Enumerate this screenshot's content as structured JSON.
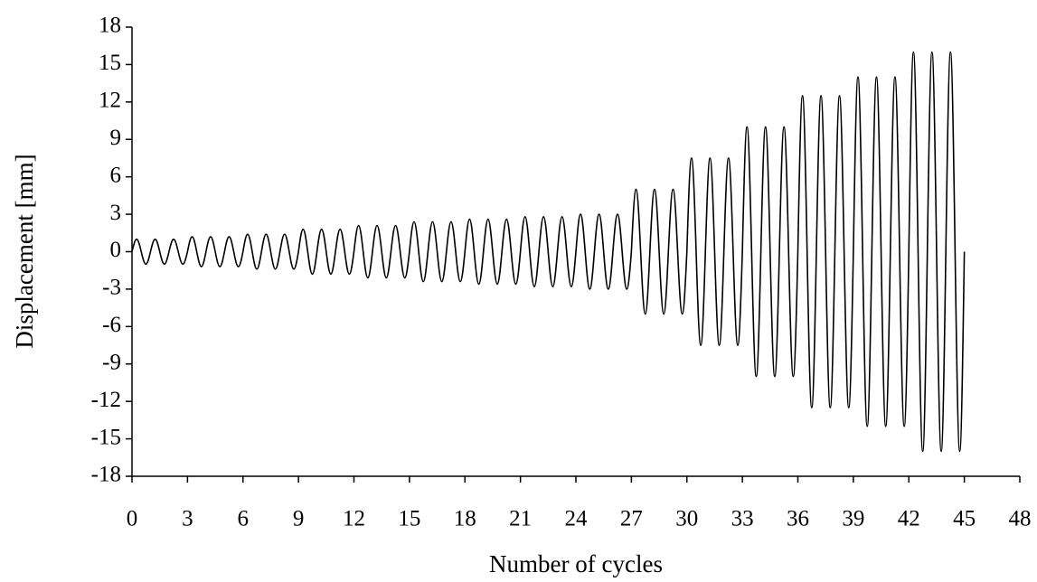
{
  "chart_data": {
    "type": "line",
    "x_label": "Number of cycles",
    "y_label": "Displacement  [mm]",
    "xlim": [
      0,
      48
    ],
    "xticks": [
      0,
      3,
      6,
      9,
      12,
      15,
      18,
      21,
      24,
      27,
      30,
      33,
      36,
      39,
      42,
      45,
      48
    ],
    "ylim": [
      -18,
      18
    ],
    "yticks": [
      -18,
      -15,
      -12,
      -9,
      -6,
      -3,
      0,
      3,
      6,
      9,
      12,
      15,
      18
    ],
    "grid": false,
    "series": [
      {
        "color": "#000000",
        "x": [
          0,
          0.25,
          0.5,
          0.75,
          1,
          1.25,
          1.5,
          1.75,
          2,
          2.25,
          2.5,
          2.75,
          3,
          3.25,
          3.5,
          3.75,
          4,
          4.25,
          4.5,
          4.75,
          5,
          5.25,
          5.5,
          5.75,
          6,
          6.25,
          6.5,
          6.75,
          7,
          7.25,
          7.5,
          7.75,
          8,
          8.25,
          8.5,
          8.75,
          9,
          9.25,
          9.5,
          9.75,
          10,
          10.25,
          10.5,
          10.75,
          11,
          11.25,
          11.5,
          11.75,
          12,
          12.25,
          12.5,
          12.75,
          13,
          13.25,
          13.5,
          13.75,
          14,
          14.25,
          14.5,
          14.75,
          15,
          15.25,
          15.5,
          15.75,
          16,
          16.25,
          16.5,
          16.75,
          17,
          17.25,
          17.5,
          17.75,
          18,
          18.25,
          18.5,
          18.75,
          19,
          19.25,
          19.5,
          19.75,
          20,
          20.25,
          20.5,
          20.75,
          21,
          21.25,
          21.5,
          21.75,
          22,
          22.25,
          22.5,
          22.75,
          23,
          23.25,
          23.5,
          23.75,
          24,
          24.25,
          24.5,
          24.75,
          25,
          25.25,
          25.5,
          25.75,
          26,
          26.25,
          26.5,
          26.75,
          27,
          27.25,
          27.5,
          27.75,
          28,
          28.25,
          28.5,
          28.75,
          29,
          29.25,
          29.5,
          29.75,
          30,
          30.25,
          30.5,
          30.75,
          31,
          31.25,
          31.5,
          31.75,
          32,
          32.25,
          32.5,
          32.75,
          33,
          33.25,
          33.5,
          33.75,
          34,
          34.25,
          34.5,
          34.75,
          35,
          35.25,
          35.5,
          35.75,
          36,
          36.25,
          36.5,
          36.75,
          37,
          37.25,
          37.5,
          37.75,
          38,
          38.25,
          38.5,
          38.75,
          39,
          39.25,
          39.5,
          39.75,
          40,
          40.25,
          40.5,
          40.75,
          41,
          41.25,
          41.5,
          41.75,
          42,
          42.25,
          42.5,
          42.75,
          43,
          43.25,
          43.5,
          43.75,
          44,
          44.25,
          44.5,
          44.75,
          45
        ],
        "values": [
          0,
          1,
          0,
          -1,
          0,
          1,
          0,
          -1,
          0,
          1,
          0,
          -1,
          0,
          1.2,
          0,
          -1.2,
          0,
          1.2,
          0,
          -1.2,
          0,
          1.2,
          0,
          -1.2,
          0,
          1.4,
          0,
          -1.4,
          0,
          1.4,
          0,
          -1.4,
          0,
          1.4,
          0,
          -1.4,
          0,
          1.8,
          0,
          -1.8,
          0,
          1.8,
          0,
          -1.8,
          0,
          1.8,
          0,
          -1.8,
          0,
          2.1,
          0,
          -2.1,
          0,
          2.1,
          0,
          -2.1,
          0,
          2.1,
          0,
          -2.1,
          0,
          2.4,
          0,
          -2.4,
          0,
          2.4,
          0,
          -2.4,
          0,
          2.4,
          0,
          -2.4,
          0,
          2.6,
          0,
          -2.6,
          0,
          2.6,
          0,
          -2.6,
          0,
          2.6,
          0,
          -2.6,
          0,
          2.8,
          0,
          -2.8,
          0,
          2.8,
          0,
          -2.8,
          0,
          2.8,
          0,
          -2.8,
          0,
          3,
          0,
          -3,
          0,
          3,
          0,
          -3,
          0,
          3,
          0,
          -3,
          0,
          5,
          0,
          -5,
          0,
          5,
          0,
          -5,
          0,
          5,
          0,
          -5,
          0,
          7.5,
          0,
          -7.5,
          0,
          7.5,
          0,
          -7.5,
          0,
          7.5,
          0,
          -7.5,
          0,
          10,
          0,
          -10,
          0,
          10,
          0,
          -10,
          0,
          10,
          0,
          -10,
          0,
          12.5,
          0,
          -12.5,
          0,
          12.5,
          0,
          -12.5,
          0,
          12.5,
          0,
          -12.5,
          0,
          14,
          0,
          -14,
          0,
          14,
          0,
          -14,
          0,
          14,
          0,
          -14,
          0,
          16,
          0,
          -16,
          0,
          16,
          0,
          -16,
          0,
          16,
          0,
          -16,
          0
        ]
      }
    ]
  }
}
